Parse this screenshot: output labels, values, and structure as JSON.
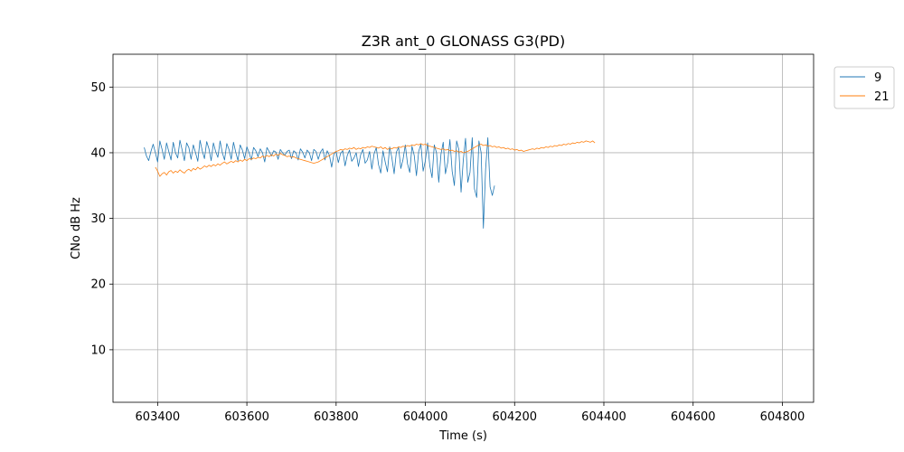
{
  "chart_data": {
    "type": "line",
    "title": "Z3R ant_0 GLONASS G3(PD)",
    "xlabel": "Time (s)",
    "ylabel": "CNo dB Hz",
    "xlim": [
      603300,
      604870
    ],
    "ylim": [
      2,
      55
    ],
    "xticks": [
      603400,
      603600,
      603800,
      604000,
      604200,
      604400,
      604600,
      604800
    ],
    "yticks": [
      10,
      20,
      30,
      40,
      50
    ],
    "grid": true,
    "legend_position": "outside-top-right",
    "series": [
      {
        "name": "9",
        "color": "#1f77b4",
        "x_start": 603370,
        "x_step": 5,
        "values": [
          40.8,
          39.5,
          38.8,
          40.2,
          41.3,
          40.0,
          38.6,
          41.8,
          40.5,
          39.0,
          41.5,
          40.2,
          38.9,
          41.6,
          40.0,
          39.2,
          41.9,
          40.4,
          38.8,
          41.5,
          40.8,
          39.0,
          41.2,
          40.0,
          38.7,
          41.9,
          40.3,
          39.1,
          41.7,
          40.6,
          38.8,
          41.5,
          40.2,
          39.3,
          41.8,
          40.0,
          38.9,
          41.4,
          40.5,
          39.0,
          41.6,
          40.1,
          38.8,
          41.2,
          40.4,
          39.1,
          40.9,
          40.0,
          38.9,
          40.8,
          40.3,
          39.4,
          40.6,
          40.0,
          38.6,
          40.8,
          40.2,
          39.5,
          40.3,
          40.1,
          39.0,
          40.5,
          40.0,
          39.6,
          40.2,
          40.4,
          39.1,
          40.3,
          40.0,
          38.9,
          40.6,
          40.1,
          39.2,
          40.4,
          40.0,
          38.8,
          40.5,
          40.2,
          39.0,
          40.1,
          40.6,
          38.9,
          40.3,
          39.6,
          37.8,
          39.8,
          40.2,
          38.5,
          39.9,
          40.3,
          38.0,
          39.6,
          40.4,
          38.7,
          39.2,
          40.0,
          37.9,
          39.7,
          40.5,
          38.4,
          38.9,
          40.2,
          37.5,
          39.8,
          40.8,
          38.2,
          36.9,
          40.3,
          38.6,
          37.1,
          40.9,
          39.2,
          36.8,
          40.1,
          40.8,
          37.6,
          39.0,
          41.2,
          38.3,
          37.0,
          41.0,
          39.6,
          36.5,
          40.2,
          41.3,
          37.2,
          38.8,
          41.5,
          38.0,
          36.2,
          41.2,
          40.0,
          35.5,
          39.8,
          41.6,
          36.8,
          38.5,
          42.0,
          37.2,
          35.0,
          41.8,
          40.5,
          34.0,
          38.9,
          42.2,
          35.5,
          37.0,
          42.3,
          34.5,
          33.2,
          41.8,
          40.0,
          28.5,
          37.5,
          42.3,
          34.8,
          33.5,
          35.0
        ]
      },
      {
        "name": "21",
        "color": "#ff7f0e",
        "x_start": 603395,
        "x_step": 5,
        "values": [
          37.8,
          37.2,
          36.4,
          36.8,
          37.0,
          36.6,
          37.1,
          37.3,
          36.9,
          37.2,
          37.0,
          37.4,
          37.1,
          36.9,
          37.3,
          37.5,
          37.2,
          37.6,
          37.4,
          37.8,
          37.5,
          37.7,
          38.0,
          37.8,
          38.1,
          37.9,
          38.2,
          38.0,
          38.3,
          38.1,
          38.4,
          38.6,
          38.3,
          38.5,
          38.7,
          38.5,
          38.8,
          38.6,
          38.9,
          38.7,
          39.0,
          38.8,
          39.1,
          39.0,
          39.2,
          39.1,
          39.3,
          39.2,
          39.5,
          39.3,
          39.6,
          39.4,
          39.7,
          39.5,
          39.8,
          39.6,
          39.9,
          39.7,
          39.6,
          39.4,
          39.5,
          39.3,
          39.4,
          39.2,
          39.1,
          39.0,
          38.9,
          38.8,
          38.7,
          38.6,
          38.5,
          38.4,
          38.5,
          38.6,
          38.8,
          39.0,
          39.2,
          39.4,
          39.6,
          39.8,
          40.0,
          40.2,
          40.3,
          40.5,
          40.4,
          40.6,
          40.5,
          40.7,
          40.6,
          40.8,
          40.5,
          40.7,
          40.6,
          40.8,
          40.7,
          40.9,
          40.8,
          41.0,
          40.9,
          40.8,
          40.7,
          40.9,
          40.6,
          40.8,
          40.5,
          40.7,
          40.6,
          40.8,
          40.7,
          40.9,
          40.8,
          41.0,
          40.9,
          41.1,
          41.0,
          41.2,
          41.1,
          41.3,
          41.2,
          41.4,
          41.2,
          41.3,
          41.1,
          41.0,
          40.9,
          40.8,
          40.7,
          40.6,
          40.5,
          40.6,
          40.4,
          40.5,
          40.3,
          40.4,
          40.2,
          40.3,
          40.1,
          40.2,
          40.0,
          40.1,
          40.2,
          40.4,
          40.6,
          40.8,
          41.0,
          41.2,
          41.3,
          41.1,
          41.2,
          41.0,
          41.1,
          40.9,
          41.0,
          40.8,
          40.9,
          40.7,
          40.8,
          40.6,
          40.7,
          40.5,
          40.6,
          40.4,
          40.5,
          40.3,
          40.4,
          40.2,
          40.3,
          40.4,
          40.5,
          40.6,
          40.5,
          40.7,
          40.6,
          40.8,
          40.7,
          40.9,
          40.8,
          41.0,
          40.9,
          41.1,
          41.0,
          41.2,
          41.1,
          41.3,
          41.2,
          41.4,
          41.3,
          41.5,
          41.4,
          41.6,
          41.5,
          41.7,
          41.6,
          41.8,
          41.7,
          41.6,
          41.8,
          41.5
        ]
      }
    ]
  }
}
